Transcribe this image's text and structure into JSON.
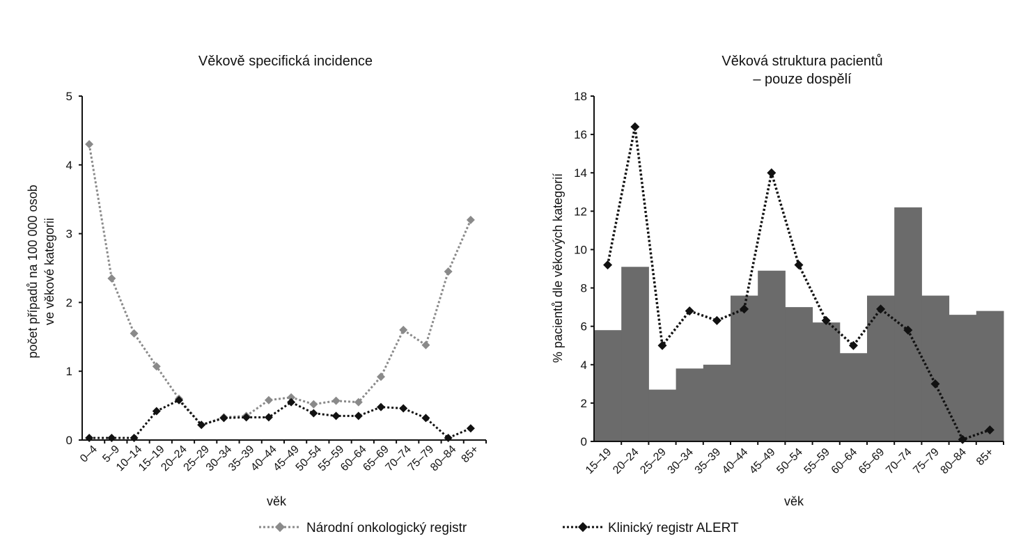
{
  "chart_data": [
    {
      "type": "line",
      "title": "Věkově specifická incidence",
      "xlabel": "věk",
      "ylabel_lines": [
        "počet případů na 100 000 osob",
        "ve věkové kategorii"
      ],
      "ylim": [
        0,
        5
      ],
      "yticks": [
        "0",
        "1",
        "2",
        "3",
        "4",
        "5"
      ],
      "categories": [
        "0–4",
        "5–9",
        "10–14",
        "15–19",
        "20–24",
        "25–29",
        "30–34",
        "35–39",
        "40–44",
        "45–49",
        "50–54",
        "55–59",
        "60–64",
        "65–69",
        "70–74",
        "75–79",
        "80–84",
        "85+"
      ],
      "series": [
        {
          "name": "Národní onkologický registr",
          "color": "#8a8a8a",
          "values": [
            4.3,
            2.35,
            1.55,
            1.07,
            0.6,
            0.22,
            0.33,
            0.35,
            0.58,
            0.62,
            0.52,
            0.57,
            0.55,
            0.92,
            1.6,
            1.38,
            2.45,
            3.2
          ]
        },
        {
          "name": "Klinický registr ALERT",
          "color": "#111111",
          "values": [
            0.03,
            0.03,
            0.03,
            0.42,
            0.58,
            0.22,
            0.32,
            0.33,
            0.33,
            0.55,
            0.39,
            0.35,
            0.35,
            0.48,
            0.46,
            0.32,
            0.03,
            0.17
          ]
        }
      ]
    },
    {
      "type": "bar",
      "title_lines": [
        "Věková struktura pacientů",
        "– pouze dospělí"
      ],
      "xlabel": "věk",
      "ylabel": "% pacientů dle věkových kategorií",
      "ylim": [
        0,
        18
      ],
      "yticks": [
        "0",
        "2",
        "4",
        "6",
        "8",
        "10",
        "12",
        "14",
        "16",
        "18"
      ],
      "categories": [
        "15–19",
        "20–24",
        "25–29",
        "30–34",
        "35–39",
        "40–44",
        "45–49",
        "50–54",
        "55–59",
        "60–64",
        "65–69",
        "70–74",
        "75–79",
        "80–84",
        "85+"
      ],
      "bars": {
        "color": "#6b6b6b",
        "values": [
          5.8,
          9.1,
          2.7,
          3.8,
          4.0,
          7.6,
          8.9,
          7.0,
          6.2,
          4.6,
          7.6,
          12.2,
          7.6,
          6.6,
          6.8
        ]
      },
      "line": {
        "name": "Klinický registr ALERT",
        "color": "#111111",
        "values": [
          9.2,
          16.4,
          5.0,
          6.8,
          6.3,
          6.9,
          14.0,
          9.2,
          6.3,
          5.0,
          6.9,
          5.8,
          3.0,
          0.1,
          0.6
        ]
      }
    }
  ],
  "legend": [
    {
      "label": "Národní onkologický registr",
      "style": "dotted-gray-diamond",
      "color": "#8a8a8a"
    },
    {
      "label": "Klinický registr ALERT",
      "style": "dotted-black-diamond",
      "color": "#111111"
    }
  ]
}
